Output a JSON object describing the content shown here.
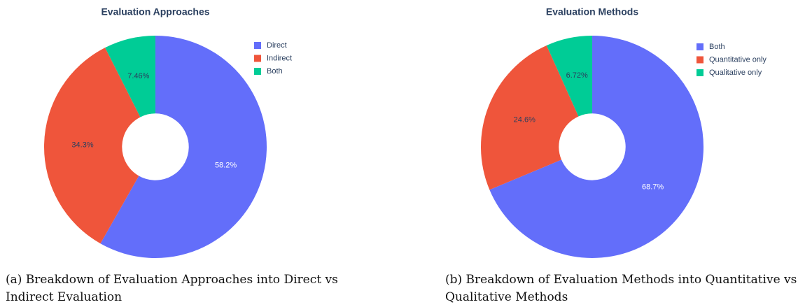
{
  "chart_data": [
    {
      "type": "pie",
      "title": "Evaluation Approaches",
      "categories": [
        "Direct",
        "Indirect",
        "Both"
      ],
      "values": [
        58.2,
        34.3,
        7.46
      ],
      "value_labels": [
        "58.2%",
        "34.3%",
        "7.46%"
      ],
      "colors": [
        "#636efa",
        "#ef553b",
        "#00cc96"
      ],
      "label_colors": [
        "#ffffff",
        "#2a3f5f",
        "#2a3f5f"
      ],
      "hole": 0.3,
      "legend": "top-right",
      "caption": "(a) Breakdown of Evaluation Approaches into Direct vs Indirect Evaluation"
    },
    {
      "type": "pie",
      "title": "Evaluation Methods",
      "categories": [
        "Both",
        "Quantitative only",
        "Qualitative only"
      ],
      "values": [
        68.7,
        24.6,
        6.72
      ],
      "value_labels": [
        "68.7%",
        "24.6%",
        "6.72%"
      ],
      "colors": [
        "#636efa",
        "#ef553b",
        "#00cc96"
      ],
      "label_colors": [
        "#ffffff",
        "#2a3f5f",
        "#2a3f5f"
      ],
      "hole": 0.3,
      "legend": "top-right",
      "caption": "(b) Breakdown of Evaluation Methods into Quantitative vs Qualitative Methods"
    }
  ]
}
